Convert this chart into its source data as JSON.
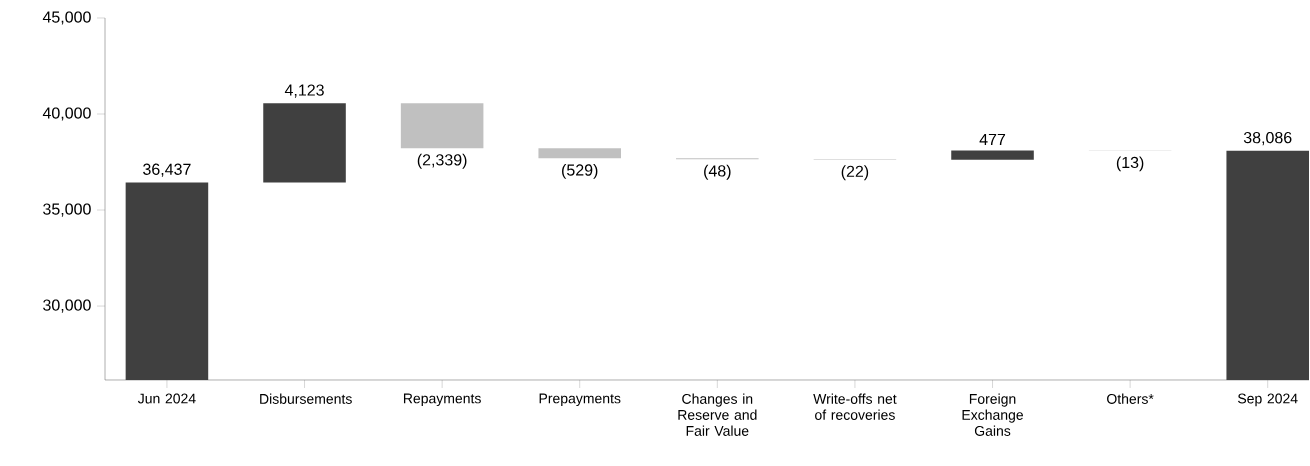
{
  "chart_data": {
    "type": "bar",
    "categories": [
      "Jun 2024",
      "Disbursements",
      "Repayments",
      "Prepayments",
      "Changes in Reserve and Fair Value",
      "Write-offs net of recoveries",
      "Foreign Exchange Gains",
      "Others*",
      "Sep 2024"
    ],
    "values": [
      36437,
      4123,
      -2339,
      -529,
      -48,
      -22,
      477,
      -13,
      38086
    ],
    "base": [
      null,
      36437,
      40560,
      38221,
      37692,
      37644,
      37622,
      38099,
      null
    ],
    "value_labels": [
      "36,437",
      "4,123",
      "(2,339)",
      "(529)",
      "(48)",
      "(22)",
      "477",
      "(13)",
      "38,086"
    ],
    "colors": [
      "#404040",
      "#404040",
      "#c0c0c0",
      "#c0c0c0",
      "#c0c0c0",
      "#c0c0c0",
      "#404040",
      "#c0c0c0",
      "#404040"
    ],
    "ylim": [
      26150,
      45000
    ],
    "yticks": [
      {
        "value": 30000,
        "label": "30,000"
      },
      {
        "value": 35000,
        "label": "35,000"
      },
      {
        "value": 40000,
        "label": "40,000"
      },
      {
        "value": 45000,
        "label": "45,000"
      }
    ]
  }
}
